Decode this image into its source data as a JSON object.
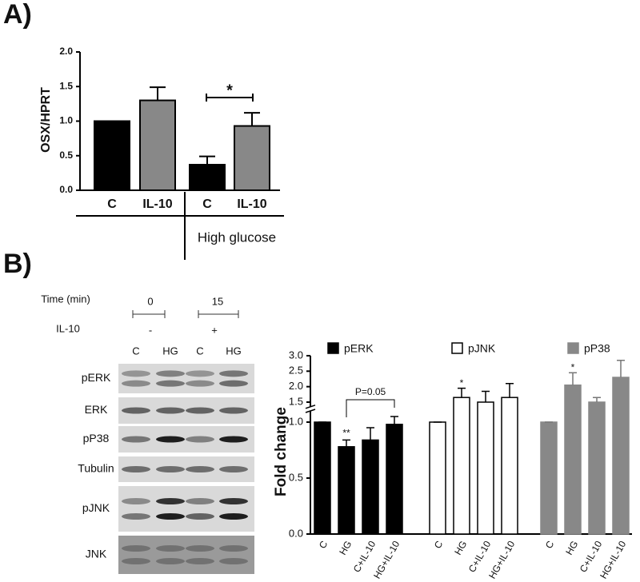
{
  "panels": [
    "A)",
    "B)"
  ],
  "blot": {
    "time_label": "Time (min)",
    "times": [
      "0",
      "15"
    ],
    "treatment_label": "IL-10",
    "treatments": [
      "-",
      "+"
    ],
    "lanes": [
      "C",
      "HG",
      "C",
      "HG"
    ],
    "rows": [
      "pERK",
      "ERK",
      "pP38",
      "Tubulin",
      "pJNK",
      "JNK"
    ]
  },
  "chart_data": [
    {
      "type": "bar",
      "ylabel": "OSX/HPRT",
      "categories": [
        "C",
        "IL-10",
        "C",
        "IL-10"
      ],
      "values": [
        1.0,
        1.3,
        0.37,
        0.93
      ],
      "errors": [
        0,
        0.19,
        0.12,
        0.19
      ],
      "colors": [
        "#000000",
        "#888888",
        "#000000",
        "#888888"
      ],
      "ylim": [
        0,
        2
      ],
      "yticks": [
        {
          "value": 0,
          "label": "0.0"
        },
        {
          "value": 0.5,
          "label": "0.5"
        },
        {
          "value": 1,
          "label": "1.0"
        },
        {
          "value": 1.5,
          "label": "1.5"
        },
        {
          "value": 2,
          "label": "2.0"
        }
      ],
      "group_label": "High glucose",
      "annotations": [
        "*"
      ]
    },
    {
      "type": "broken-bar",
      "ylabel": "Fold change",
      "categories": [
        "C",
        "HG",
        "C+IL-10",
        "HG+IL-10"
      ],
      "series": [
        {
          "name": "pERK",
          "color": "#000000",
          "values": [
            1.0,
            0.78,
            0.84,
            0.98
          ],
          "errors": [
            0,
            0.06,
            0.11,
            0.07
          ]
        },
        {
          "name": "pJNK",
          "color": "#ffffff",
          "values": [
            1.0,
            1.65,
            1.5,
            1.65
          ],
          "errors": [
            0,
            0.3,
            0.35,
            0.45
          ]
        },
        {
          "name": "pP38",
          "color": "#888888",
          "values": [
            1.0,
            2.05,
            1.5,
            2.3
          ],
          "errors": [
            0,
            0.4,
            0.15,
            0.55
          ]
        }
      ],
      "ylim": [
        0,
        3
      ],
      "ybreak": [
        1.1,
        1.35
      ],
      "yticks": [
        {
          "value": 0,
          "label": "0.0"
        },
        {
          "value": 0.5,
          "label": "0.5"
        },
        {
          "value": 1,
          "label": "1.0"
        },
        {
          "value": 1.5,
          "label": "1.5"
        },
        {
          "value": 2,
          "label": "2.0"
        },
        {
          "value": 2.5,
          "label": "2.5"
        },
        {
          "value": 3,
          "label": "3.0"
        }
      ],
      "annotations": [
        "**",
        "*",
        "*",
        "P=0.05"
      ]
    }
  ]
}
